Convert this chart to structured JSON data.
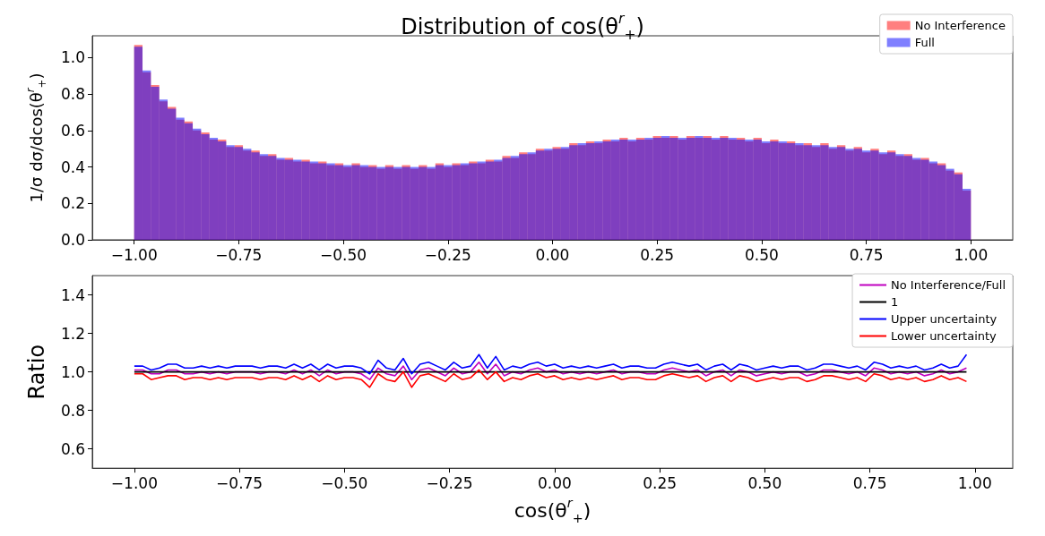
{
  "chart_data": [
    {
      "type": "histogram",
      "title": "Distribution of cos(θ$^{r}$$_{+}$)",
      "ylabel": "1/σ dσ/dcos(θ$^{r}$$_{+}$)",
      "legend": "top right",
      "xlim": [
        -1.1,
        1.1
      ],
      "ylim": [
        0,
        1.12
      ],
      "xticks": [
        {
          "value": -1,
          "label": "−1.00"
        },
        {
          "value": -0.75,
          "label": "−0.75"
        },
        {
          "value": -0.5,
          "label": "−0.50"
        },
        {
          "value": -0.25,
          "label": "−0.25"
        },
        {
          "value": 0,
          "label": "0.00"
        },
        {
          "value": 0.25,
          "label": "0.25"
        },
        {
          "value": 0.5,
          "label": "0.50"
        },
        {
          "value": 0.75,
          "label": "0.75"
        },
        {
          "value": 1,
          "label": "1.00"
        }
      ],
      "yticks": [
        {
          "value": 0,
          "label": "0.0"
        },
        {
          "value": 0.2,
          "label": "0.2"
        },
        {
          "value": 0.4,
          "label": "0.4"
        },
        {
          "value": 0.6,
          "label": "0.6"
        },
        {
          "value": 0.8,
          "label": "0.8"
        },
        {
          "value": 1,
          "label": "1.0"
        }
      ],
      "bins": [
        -1,
        -0.98,
        -0.96,
        -0.94,
        -0.92,
        -0.9,
        -0.88,
        -0.86,
        -0.84,
        -0.82,
        -0.8,
        -0.78,
        -0.76,
        -0.74,
        -0.72,
        -0.7,
        -0.68,
        -0.66,
        -0.64,
        -0.62,
        -0.6,
        -0.58,
        -0.56,
        -0.54,
        -0.52,
        -0.5,
        -0.48,
        -0.46,
        -0.44,
        -0.42,
        -0.4,
        -0.38,
        -0.36,
        -0.34,
        -0.32,
        -0.3,
        -0.28,
        -0.26,
        -0.24,
        -0.22,
        -0.2,
        -0.18,
        -0.16,
        -0.14,
        -0.12,
        -0.1,
        -0.08,
        -0.06,
        -0.04,
        -0.02,
        0,
        0.02,
        0.04,
        0.06,
        0.08,
        0.1,
        0.12,
        0.14,
        0.16,
        0.18,
        0.2,
        0.22,
        0.24,
        0.26,
        0.28,
        0.3,
        0.32,
        0.34,
        0.36,
        0.38,
        0.4,
        0.42,
        0.44,
        0.46,
        0.48,
        0.5,
        0.52,
        0.54,
        0.56,
        0.58,
        0.6,
        0.62,
        0.64,
        0.66,
        0.68,
        0.7,
        0.72,
        0.74,
        0.76,
        0.78,
        0.8,
        0.82,
        0.84,
        0.86,
        0.88,
        0.9,
        0.92,
        0.94,
        0.96,
        0.98,
        1
      ],
      "series": [
        {
          "name": "No Interference",
          "color": "#ff0000",
          "values": [
            1.07,
            0.92,
            0.85,
            0.76,
            0.73,
            0.66,
            0.65,
            0.6,
            0.59,
            0.55,
            0.55,
            0.51,
            0.52,
            0.49,
            0.49,
            0.46,
            0.47,
            0.44,
            0.45,
            0.43,
            0.44,
            0.42,
            0.43,
            0.41,
            0.42,
            0.4,
            0.42,
            0.4,
            0.41,
            0.39,
            0.41,
            0.39,
            0.41,
            0.39,
            0.41,
            0.39,
            0.42,
            0.4,
            0.42,
            0.41,
            0.43,
            0.42,
            0.44,
            0.43,
            0.46,
            0.45,
            0.48,
            0.47,
            0.5,
            0.49,
            0.51,
            0.5,
            0.53,
            0.52,
            0.54,
            0.53,
            0.55,
            0.54,
            0.56,
            0.54,
            0.56,
            0.55,
            0.57,
            0.56,
            0.57,
            0.55,
            0.57,
            0.56,
            0.57,
            0.55,
            0.57,
            0.55,
            0.56,
            0.54,
            0.56,
            0.53,
            0.55,
            0.53,
            0.54,
            0.52,
            0.53,
            0.51,
            0.53,
            0.5,
            0.52,
            0.49,
            0.51,
            0.48,
            0.5,
            0.47,
            0.49,
            0.46,
            0.47,
            0.44,
            0.45,
            0.42,
            0.42,
            0.38,
            0.37,
            0.27
          ]
        },
        {
          "name": "Full",
          "color": "#0000ff",
          "values": [
            1.06,
            0.93,
            0.84,
            0.77,
            0.72,
            0.67,
            0.64,
            0.61,
            0.58,
            0.56,
            0.54,
            0.52,
            0.51,
            0.5,
            0.48,
            0.47,
            0.46,
            0.45,
            0.44,
            0.44,
            0.43,
            0.43,
            0.42,
            0.42,
            0.41,
            0.41,
            0.41,
            0.41,
            0.4,
            0.4,
            0.4,
            0.4,
            0.4,
            0.4,
            0.4,
            0.4,
            0.41,
            0.41,
            0.41,
            0.42,
            0.42,
            0.43,
            0.43,
            0.44,
            0.45,
            0.46,
            0.47,
            0.48,
            0.49,
            0.5,
            0.5,
            0.51,
            0.52,
            0.53,
            0.53,
            0.54,
            0.54,
            0.55,
            0.55,
            0.55,
            0.55,
            0.56,
            0.56,
            0.57,
            0.56,
            0.56,
            0.56,
            0.57,
            0.56,
            0.56,
            0.56,
            0.56,
            0.55,
            0.55,
            0.55,
            0.54,
            0.54,
            0.54,
            0.53,
            0.53,
            0.52,
            0.52,
            0.52,
            0.51,
            0.51,
            0.5,
            0.5,
            0.49,
            0.49,
            0.48,
            0.48,
            0.47,
            0.46,
            0.45,
            0.44,
            0.43,
            0.41,
            0.39,
            0.36,
            0.28
          ]
        }
      ]
    },
    {
      "type": "line",
      "xlabel": "cos(θ$^{r}$$_{+}$)",
      "ylabel": "Ratio",
      "legend": "top right",
      "xlim": [
        -1.1,
        1.09
      ],
      "ylim": [
        0.5,
        1.5
      ],
      "xticks": [
        {
          "value": -1,
          "label": "−1.00"
        },
        {
          "value": -0.75,
          "label": "−0.75"
        },
        {
          "value": -0.5,
          "label": "−0.50"
        },
        {
          "value": -0.25,
          "label": "−0.25"
        },
        {
          "value": 0,
          "label": "0.00"
        },
        {
          "value": 0.25,
          "label": "0.25"
        },
        {
          "value": 0.5,
          "label": "0.50"
        },
        {
          "value": 0.75,
          "label": "0.75"
        },
        {
          "value": 1,
          "label": "1.00"
        }
      ],
      "yticks": [
        0.6,
        0.8,
        {
          "value": 1,
          "label": "1.0"
        },
        1.2,
        1.4
      ],
      "x": [
        -1,
        -0.98,
        -0.96,
        -0.94,
        -0.92,
        -0.9,
        -0.88,
        -0.86,
        -0.84,
        -0.82,
        -0.8,
        -0.78,
        -0.76,
        -0.74,
        -0.72,
        -0.7,
        -0.68,
        -0.66,
        -0.64,
        -0.62,
        -0.6,
        -0.58,
        -0.56,
        -0.54,
        -0.52,
        -0.5,
        -0.48,
        -0.46,
        -0.44,
        -0.42,
        -0.4,
        -0.38,
        -0.36,
        -0.34,
        -0.32,
        -0.3,
        -0.28,
        -0.26,
        -0.24,
        -0.22,
        -0.2,
        -0.18,
        -0.16,
        -0.14,
        -0.12,
        -0.1,
        -0.08,
        -0.06,
        -0.04,
        -0.02,
        0,
        0.02,
        0.04,
        0.06,
        0.08,
        0.1,
        0.12,
        0.14,
        0.16,
        0.18,
        0.2,
        0.22,
        0.24,
        0.26,
        0.28,
        0.3,
        0.32,
        0.34,
        0.36,
        0.38,
        0.4,
        0.42,
        0.44,
        0.46,
        0.48,
        0.5,
        0.52,
        0.54,
        0.56,
        0.58,
        0.6,
        0.62,
        0.64,
        0.66,
        0.68,
        0.7,
        0.72,
        0.74,
        0.76,
        0.78,
        0.8,
        0.82,
        0.84,
        0.86,
        0.88,
        0.9,
        0.92,
        0.94,
        0.96,
        0.98
      ],
      "series": [
        {
          "name": "No Interference/Full",
          "color": "#bf00bf",
          "values": [
            1.01,
            1.01,
            0.99,
            0.99,
            1.01,
            1.01,
            0.99,
            0.99,
            1.0,
            0.99,
            1.0,
            0.99,
            1.0,
            1.0,
            1.0,
            0.99,
            1.0,
            1.0,
            0.99,
            1.01,
            0.99,
            1.01,
            0.98,
            1.01,
            0.99,
            1.0,
            1.0,
            0.99,
            0.96,
            1.02,
            0.99,
            0.98,
            1.03,
            0.96,
            1.01,
            1.02,
            1.0,
            0.98,
            1.02,
            0.99,
            1.0,
            1.05,
            0.99,
            1.04,
            0.98,
            1.0,
            0.99,
            1.01,
            1.02,
            1.0,
            1.01,
            0.99,
            1.0,
            0.99,
            1.0,
            0.99,
            1.0,
            1.01,
            0.99,
            1.0,
            1.0,
            0.99,
            0.99,
            1.01,
            1.02,
            1.01,
            1.0,
            1.01,
            0.98,
            1.0,
            1.01,
            0.98,
            1.01,
            1.0,
            0.98,
            0.99,
            1.0,
            0.99,
            1.0,
            1.0,
            0.98,
            0.99,
            1.01,
            1.01,
            1.0,
            0.99,
            1.0,
            0.98,
            1.02,
            1.01,
            0.99,
            1.0,
            0.99,
            1.0,
            0.98,
            0.99,
            1.01,
            0.99,
            1.0,
            1.02
          ]
        },
        {
          "name": "1",
          "color": "#000000",
          "x": [
            -1,
            0.98
          ],
          "values": [
            1,
            1
          ]
        },
        {
          "name": "Upper uncertainty",
          "color": "#0000ff",
          "values": [
            1.03,
            1.03,
            1.01,
            1.02,
            1.04,
            1.04,
            1.02,
            1.02,
            1.03,
            1.02,
            1.03,
            1.02,
            1.03,
            1.03,
            1.03,
            1.02,
            1.03,
            1.03,
            1.02,
            1.04,
            1.02,
            1.04,
            1.01,
            1.04,
            1.02,
            1.03,
            1.03,
            1.02,
            0.99,
            1.06,
            1.02,
            1.01,
            1.07,
            0.99,
            1.04,
            1.05,
            1.03,
            1.01,
            1.05,
            1.02,
            1.03,
            1.09,
            1.02,
            1.08,
            1.01,
            1.03,
            1.02,
            1.04,
            1.05,
            1.03,
            1.04,
            1.02,
            1.03,
            1.02,
            1.03,
            1.02,
            1.03,
            1.04,
            1.02,
            1.03,
            1.03,
            1.02,
            1.02,
            1.04,
            1.05,
            1.04,
            1.03,
            1.04,
            1.01,
            1.03,
            1.04,
            1.01,
            1.04,
            1.03,
            1.01,
            1.02,
            1.03,
            1.02,
            1.03,
            1.03,
            1.01,
            1.02,
            1.04,
            1.04,
            1.03,
            1.02,
            1.03,
            1.01,
            1.05,
            1.04,
            1.02,
            1.03,
            1.02,
            1.03,
            1.01,
            1.02,
            1.04,
            1.02,
            1.03,
            1.09
          ]
        },
        {
          "name": "Lower uncertainty",
          "color": "#ff0000",
          "values": [
            0.99,
            0.99,
            0.96,
            0.97,
            0.98,
            0.98,
            0.96,
            0.97,
            0.97,
            0.96,
            0.97,
            0.96,
            0.97,
            0.97,
            0.97,
            0.96,
            0.97,
            0.97,
            0.96,
            0.98,
            0.96,
            0.98,
            0.95,
            0.98,
            0.96,
            0.97,
            0.97,
            0.96,
            0.92,
            0.99,
            0.96,
            0.95,
            1.0,
            0.92,
            0.98,
            0.99,
            0.97,
            0.95,
            0.99,
            0.96,
            0.97,
            1.01,
            0.96,
            1.0,
            0.95,
            0.97,
            0.96,
            0.98,
            0.99,
            0.97,
            0.98,
            0.96,
            0.97,
            0.96,
            0.97,
            0.96,
            0.97,
            0.98,
            0.96,
            0.97,
            0.97,
            0.96,
            0.96,
            0.98,
            0.99,
            0.98,
            0.97,
            0.98,
            0.95,
            0.97,
            0.98,
            0.95,
            0.98,
            0.97,
            0.95,
            0.96,
            0.97,
            0.96,
            0.97,
            0.97,
            0.95,
            0.96,
            0.98,
            0.98,
            0.97,
            0.96,
            0.97,
            0.95,
            0.99,
            0.98,
            0.96,
            0.97,
            0.96,
            0.97,
            0.95,
            0.96,
            0.98,
            0.96,
            0.97,
            0.95
          ]
        }
      ]
    }
  ]
}
